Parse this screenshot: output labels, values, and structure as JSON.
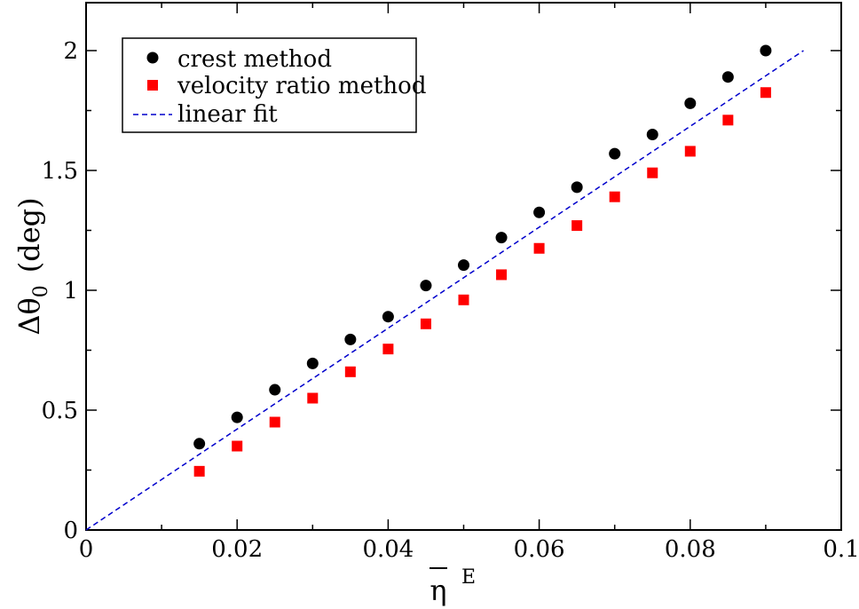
{
  "chart_data": {
    "type": "scatter",
    "xlabel": {
      "symbol": "η",
      "superscript": "E"
    },
    "ylabel": {
      "symbol": "Δθ",
      "subscript": "0",
      "unit": "(deg)"
    },
    "xlim": [
      0,
      0.1
    ],
    "ylim": [
      0,
      2.2
    ],
    "xticks": [
      0,
      0.02,
      0.04,
      0.06,
      0.08,
      0.1
    ],
    "xtick_labels": [
      "0",
      "0.02",
      "0.04",
      "0.06",
      "0.08",
      "0.1"
    ],
    "yticks": [
      0,
      0.5,
      1,
      1.5,
      2
    ],
    "ytick_labels": [
      "0",
      "0.5",
      "1",
      "1.5",
      "2"
    ],
    "grid": false,
    "legend_position": "top-left",
    "series": [
      {
        "name": "crest method",
        "kind": "scatter",
        "marker": "circle",
        "color": "#000000",
        "x": [
          0.015,
          0.02,
          0.025,
          0.03,
          0.035,
          0.04,
          0.045,
          0.05,
          0.055,
          0.06,
          0.065,
          0.07,
          0.075,
          0.08,
          0.085,
          0.09
        ],
        "y": [
          0.36,
          0.47,
          0.585,
          0.695,
          0.795,
          0.89,
          1.02,
          1.105,
          1.22,
          1.325,
          1.43,
          1.57,
          1.65,
          1.78,
          1.89,
          2.0
        ]
      },
      {
        "name": "velocity ratio method",
        "kind": "scatter",
        "marker": "square",
        "color": "#ff0000",
        "x": [
          0.015,
          0.02,
          0.025,
          0.03,
          0.035,
          0.04,
          0.045,
          0.05,
          0.055,
          0.06,
          0.065,
          0.07,
          0.075,
          0.08,
          0.085,
          0.09
        ],
        "y": [
          0.245,
          0.35,
          0.45,
          0.55,
          0.66,
          0.755,
          0.86,
          0.96,
          1.065,
          1.175,
          1.27,
          1.39,
          1.49,
          1.58,
          1.71,
          1.825
        ]
      },
      {
        "name": "linear fit",
        "kind": "line",
        "style": "dashed",
        "color": "#0000cc",
        "x": [
          0,
          0.095
        ],
        "y": [
          0,
          2.0
        ]
      }
    ]
  }
}
